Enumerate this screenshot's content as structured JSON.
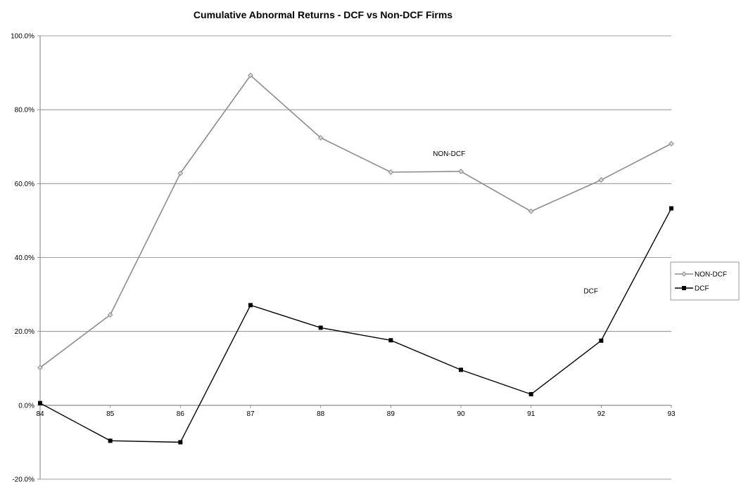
{
  "chart_data": {
    "type": "line",
    "title": "Cumulative Abnormal Returns - DCF vs Non-DCF Firms",
    "xlabel": "",
    "ylabel": "",
    "categories": [
      "84",
      "85",
      "86",
      "87",
      "88",
      "89",
      "90",
      "91",
      "92",
      "93"
    ],
    "y_tick_labels": [
      "-20.0%",
      "0.0%",
      "20.0%",
      "40.0%",
      "60.0%",
      "80.0%",
      "100.0%"
    ],
    "ylim": [
      -0.2,
      1.0
    ],
    "grid": true,
    "legend_position": "right",
    "series": [
      {
        "name": "NON-DCF",
        "color": "#8c8c8c",
        "marker": "diamond",
        "values": [
          0.102,
          0.245,
          0.628,
          0.893,
          0.724,
          0.631,
          0.633,
          0.525,
          0.61,
          0.708
        ]
      },
      {
        "name": "DCF",
        "color": "#000000",
        "marker": "square",
        "values": [
          0.006,
          -0.096,
          -0.1,
          0.271,
          0.21,
          0.176,
          0.096,
          0.03,
          0.175,
          0.533
        ]
      }
    ],
    "annotations": [
      {
        "text": "NON-DCF",
        "x": 89.6,
        "y": 0.675
      },
      {
        "text": "DCF",
        "x": 91.75,
        "y": 0.303
      }
    ]
  }
}
